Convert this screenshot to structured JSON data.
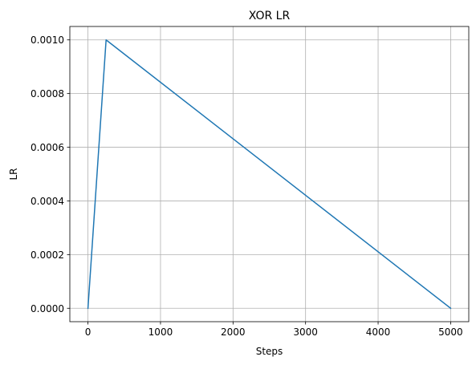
{
  "colors": {
    "line": "#1f77b4",
    "grid": "#b0b0b0",
    "axes": "#000000",
    "background": "#ffffff"
  },
  "chart_data": {
    "type": "line",
    "title": "XOR LR",
    "xlabel": "Steps",
    "ylabel": "LR",
    "xlim": [
      -250,
      5250
    ],
    "ylim": [
      -5e-05,
      0.00105
    ],
    "grid": true,
    "x_ticks": [
      0,
      1000,
      2000,
      3000,
      4000,
      5000
    ],
    "x_tick_labels": [
      "0",
      "1000",
      "2000",
      "3000",
      "4000",
      "5000"
    ],
    "y_ticks": [
      0.0,
      0.0002,
      0.0004,
      0.0006,
      0.0008,
      0.001
    ],
    "y_tick_labels": [
      "0.0000",
      "0.0002",
      "0.0004",
      "0.0006",
      "0.0008",
      "0.0010"
    ],
    "series": [
      {
        "x": [
          0,
          250,
          5000
        ],
        "y": [
          0.0,
          0.001,
          0.0
        ]
      }
    ]
  }
}
